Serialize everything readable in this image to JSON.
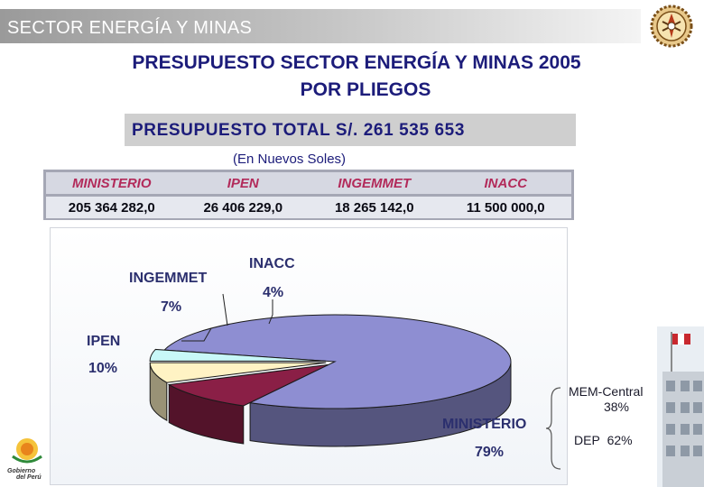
{
  "header": {
    "section_title": "SECTOR ENERGÍA Y MINAS"
  },
  "title": {
    "line1": "PRESUPUESTO SECTOR ENERGÍA Y MINAS 2005",
    "line2": "POR  PLIEGOS"
  },
  "total": {
    "text": "PRESUPUESTO  TOTAL  S/.  261 535 653"
  },
  "currency_note": "(En Nuevos Soles)",
  "table": {
    "headers": [
      "MINISTERIO",
      "IPEN",
      "INGEMMET",
      "INACC"
    ],
    "values": [
      "205 364 282,0",
      "26 406 229,0",
      "18 265 142,0",
      "11 500 000,0"
    ]
  },
  "chart_data": {
    "type": "pie",
    "style": "3d-exploded",
    "slices": [
      {
        "name": "MINISTERIO",
        "label": "79%",
        "value": 79,
        "color": "#8e8ed2"
      },
      {
        "name": "IPEN",
        "label": "10%",
        "value": 10,
        "color": "#8a1f46"
      },
      {
        "name": "INGEMMET",
        "label": "7%",
        "value": 7,
        "color": "#fff3c4"
      },
      {
        "name": "INACC",
        "label": "4%",
        "value": 4,
        "color": "#c8f8f8"
      }
    ],
    "breakdown": {
      "mem_central": {
        "label": "MEM-Central",
        "value": "38%"
      },
      "dep": {
        "label": "DEP",
        "value": "62%"
      }
    }
  },
  "colors": {
    "title": "#1c1c7a",
    "table_header": "#b22a5a",
    "label": "#2b2f6e"
  },
  "icons": [
    "ministry-emblem-icon",
    "gobierno-peru-logo",
    "building-photo"
  ]
}
